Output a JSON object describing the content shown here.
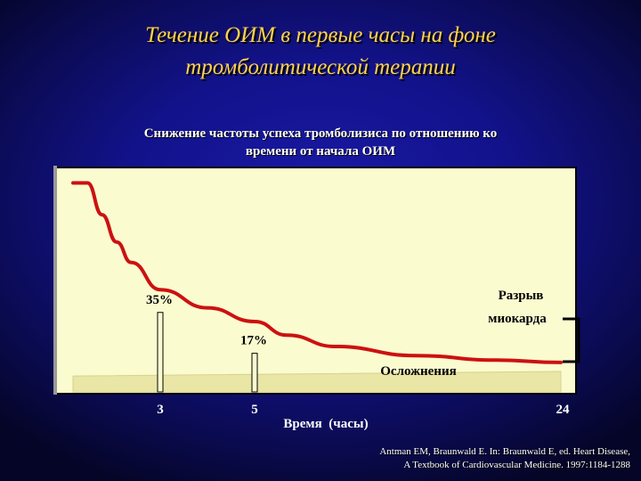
{
  "slide": {
    "title_line1": "Течение ОИМ в первые часы на фоне",
    "title_line2": "тромболитической терапии",
    "citation_line1": "Antman EM, Braunwald E. In: Braunwald E, ed. Heart Disease,",
    "citation_line2": "A Textbook of Cardiovascular Medicine. 1997:1184-1288"
  },
  "chart_data": {
    "type": "line",
    "title": "Снижение частоты успеха тромболизиса по отношению ко времени от начала ОИМ",
    "title_line1": "Снижение частоты успеха тромболизиса по отношению ко",
    "title_line2": "времени от начала ОИМ",
    "xlabel": "Время  (часы)",
    "x_ticks": [
      "3",
      "5",
      "24"
    ],
    "series": [
      {
        "name": "",
        "x": [
          0,
          0.5,
          1,
          1.5,
          2,
          3,
          4,
          5,
          7,
          10,
          15,
          20,
          24
        ],
        "y": [
          92,
          92,
          78,
          66,
          57,
          45,
          37,
          31,
          25,
          20,
          16,
          14,
          13
        ]
      }
    ],
    "markers": [
      {
        "x": 3,
        "label": "35%",
        "value": 35
      },
      {
        "x": 5,
        "label": "17%",
        "value": 17
      }
    ],
    "complications_area": {
      "label": "Осложнения",
      "y_start": 7,
      "y_end": 9
    },
    "rupture_label_line1": "Разрыв",
    "rupture_label_line2": "миокарда",
    "colors": {
      "curve": "#cc1111",
      "panel": "#fbfbd0",
      "title": "#ffd24a",
      "text": "#ffffff",
      "background": "#12128a"
    }
  }
}
